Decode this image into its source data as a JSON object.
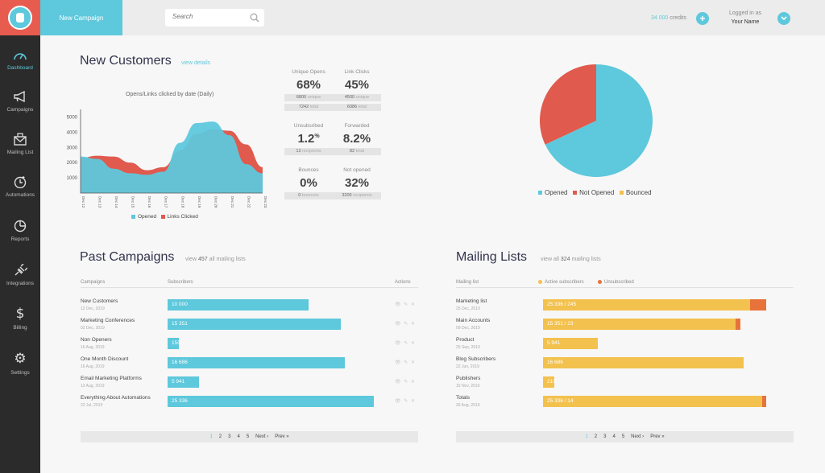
{
  "header": {
    "new_campaign": "New Campaign",
    "search_placeholder": "Search",
    "credits_amount": "34 000",
    "credits_label": "credits",
    "add_icon": "+",
    "logged_label": "Logged in as",
    "user_name": "Your Name",
    "accent": "#5ec8dc"
  },
  "sidebar": {
    "items": [
      {
        "label": "Dashboard",
        "icon": "gauge-icon"
      },
      {
        "label": "Campaigns",
        "icon": "megaphone-icon"
      },
      {
        "label": "Mailing List",
        "icon": "envelope-icon"
      },
      {
        "label": "Automations",
        "icon": "clock-icon"
      },
      {
        "label": "Reports",
        "icon": "pie-icon"
      },
      {
        "label": "Integrations",
        "icon": "plug-icon"
      },
      {
        "label": "Billing",
        "icon": "dollar-icon"
      },
      {
        "label": "Settings",
        "icon": "gear-icon"
      }
    ]
  },
  "new_customers": {
    "title": "New Customers",
    "view_details": "view details",
    "chart_title": "Opens/Links clicked by date (Daily)",
    "legend": [
      "Opened",
      "Links Clicked"
    ]
  },
  "stats": {
    "unique_opens": {
      "label": "Unique Opens",
      "value": "68%",
      "pill1_num": "6800",
      "pill1_txt": "unique",
      "pill2_num": "7242",
      "pill2_txt": "total"
    },
    "link_clicks": {
      "label": "Link Clicks",
      "value": "45%",
      "pill1_num": "4500",
      "pill1_txt": "unique",
      "pill2_num": "6086",
      "pill2_txt": "total"
    },
    "unsubscribed": {
      "label": "Unsubsribed",
      "value": "1.2",
      "sup": "%",
      "pill_num": "12",
      "pill_txt": "recipients"
    },
    "forwarded": {
      "label": "Forwarded",
      "value": "8.2%",
      "pill_num": "82",
      "pill_txt": "total"
    },
    "bounces": {
      "label": "Bounces",
      "value": "0%",
      "pill_num": "0",
      "pill_txt": "bounces"
    },
    "not_opened": {
      "label": "Not opened",
      "value": "32%",
      "pill_num": "3200",
      "pill_txt": "recipients"
    }
  },
  "pie_legend": [
    "Opened",
    "Not Opened",
    "Bounced"
  ],
  "past_campaigns": {
    "title": "Past Campaigns",
    "view_prefix": "view",
    "view_count": "457",
    "view_suffix": "all mailing lists",
    "col_campaigns": "Campaigns",
    "col_subscribers": "Subscribers",
    "col_actions": "Actions",
    "rows": [
      {
        "name": "New Customers",
        "date": "12 Dec, 2019",
        "value": "10 000"
      },
      {
        "name": "Marketing Conferences",
        "date": "02 Dec, 2019",
        "value": "15 351"
      },
      {
        "name": "Non Openers",
        "date": "16 Aug, 2019",
        "value": "150"
      },
      {
        "name": "One Month Discount",
        "date": "16 Aug, 2019",
        "value": "16 686"
      },
      {
        "name": "Email Marketing Platforms",
        "date": "12 Aug, 2019",
        "value": "5 941"
      },
      {
        "name": "Everything About Automations",
        "date": "22 Jul, 2019",
        "value": "25 336"
      }
    ],
    "actions": "👁 ✎ ✕",
    "pager": [
      "1",
      "2",
      "3",
      "4",
      "5"
    ],
    "next": "Next ›",
    "prev": "Prev »"
  },
  "mailing_lists": {
    "title": "Mailing Lists",
    "view_prefix": "view all",
    "view_count": "324",
    "view_suffix": "mailing lists",
    "col_list": "Mailing list",
    "legend_active": "Active subscribers",
    "legend_unsub": "Unsubscribed",
    "rows": [
      {
        "name": "Marketing list",
        "date": "25 Dec, 2019",
        "value": "25 336  /  245"
      },
      {
        "name": "Main Accounts",
        "date": "09 Dec, 2019",
        "value": "15 351 / 23"
      },
      {
        "name": "Product",
        "date": "25 Sep, 2019",
        "value": "5 941"
      },
      {
        "name": "Blog Subscribers",
        "date": "22 Jun, 2019",
        "value": "16 686"
      },
      {
        "name": "Publishers",
        "date": "15 Nov, 2019",
        "value": "210"
      },
      {
        "name": "Totals",
        "date": "26 Aug, 2019",
        "value": "25 336 / 14"
      }
    ],
    "pager": [
      "1",
      "2",
      "3",
      "4",
      "5"
    ],
    "next": "Next ›",
    "prev": "Prev »"
  },
  "chart_data": [
    {
      "type": "area",
      "title": "Opens/Links clicked by date (Daily)",
      "x": [
        "Dec 12",
        "Dec 13",
        "Dec 14",
        "Dec 15",
        "Dec 16",
        "Dec 17",
        "Dec 18",
        "Dec 19",
        "Dec 20",
        "Dec 21",
        "Dec 22",
        "Dec 23"
      ],
      "yticks": [
        1000,
        2000,
        3000,
        4000,
        5000
      ],
      "ylim": [
        0,
        5500
      ],
      "series": [
        {
          "name": "Links Clicked",
          "color": "#e05a4e",
          "values": [
            2300,
            2450,
            2400,
            2000,
            1500,
            1700,
            2800,
            3900,
            4200,
            4100,
            3200,
            1700
          ]
        },
        {
          "name": "Opened",
          "color": "#5ec8dc",
          "values": [
            2400,
            2250,
            1600,
            1300,
            1200,
            1400,
            3300,
            4600,
            4700,
            3800,
            1900,
            1300
          ]
        }
      ],
      "legend": "bottom"
    },
    {
      "type": "pie",
      "categories": [
        "Opened",
        "Not Opened",
        "Bounced"
      ],
      "values": [
        68,
        32,
        0
      ],
      "colors": [
        "#5ec8dc",
        "#e05a4e",
        "#f3c14d"
      ],
      "legend": "bottom"
    }
  ]
}
